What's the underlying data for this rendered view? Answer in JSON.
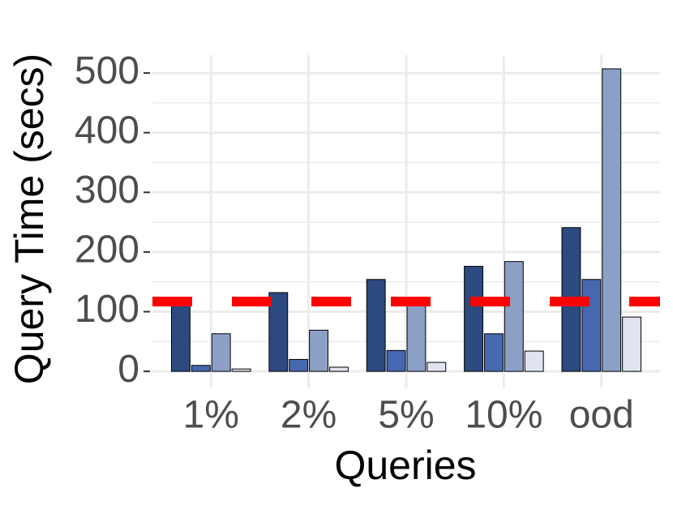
{
  "chart_data": {
    "type": "bar",
    "x_label": "Queries",
    "y_label": "Query Time (secs)",
    "categories": [
      "1%",
      "2%",
      "5%",
      "10%",
      "ood"
    ],
    "series": [
      {
        "color": "#2c4a80",
        "values": [
          118,
          132,
          154,
          176,
          241
        ]
      },
      {
        "color": "#4668b0",
        "values": [
          10,
          20,
          35,
          63,
          154
        ]
      },
      {
        "color": "#8c9fc6",
        "values": [
          63,
          69,
          110,
          184,
          507
        ]
      },
      {
        "color": "#dfe4ef",
        "values": [
          4,
          7,
          15,
          34,
          91
        ]
      }
    ],
    "ylim": [
      -27,
      530
    ],
    "yticks": [
      0,
      100,
      200,
      300,
      400,
      500
    ],
    "minor_grid": [
      50,
      150,
      250,
      350,
      450
    ],
    "grid": true,
    "hline": {
      "value": 117,
      "color": "#ff0000"
    }
  }
}
